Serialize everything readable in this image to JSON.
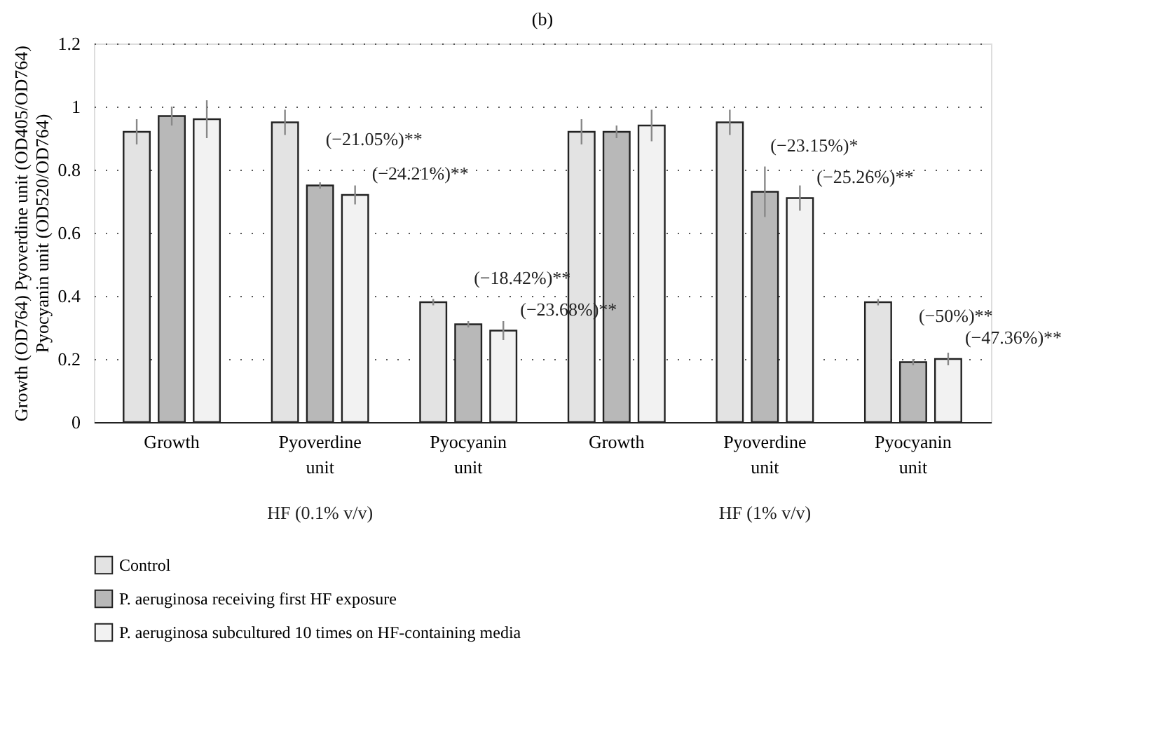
{
  "chart_data": {
    "type": "bar",
    "title": "(b)",
    "ylabel": "Growth (OD764) Pyoverdine unit (OD405/OD764)\nPyocyanin unit (OD520/OD764)",
    "categories": [
      "Growth",
      "Pyoverdine unit",
      "Pyocyanin unit",
      "Growth",
      "Pyoverdine unit",
      "Pyocyanin unit"
    ],
    "series": [
      {
        "name": "Control",
        "color": "#e3e3e3",
        "values": [
          0.92,
          0.95,
          0.38,
          0.92,
          0.95,
          0.38
        ],
        "errors": [
          0.04,
          0.04,
          0.01,
          0.04,
          0.04,
          0.01
        ]
      },
      {
        "name": "P. aeruginosa receiving first HF exposure",
        "color": "#b8b8b8",
        "values": [
          0.97,
          0.75,
          0.31,
          0.92,
          0.73,
          0.19
        ],
        "errors": [
          0.03,
          0.01,
          0.01,
          0.02,
          0.08,
          0.01
        ]
      },
      {
        "name": "P. aeruginosa subcultured 10 times on HF-containing media",
        "color": "#f2f2f2",
        "values": [
          0.96,
          0.72,
          0.29,
          0.94,
          0.71,
          0.2
        ],
        "errors": [
          0.06,
          0.03,
          0.03,
          0.05,
          0.04,
          0.02
        ]
      }
    ],
    "annotations": [
      "(−21.05%)**",
      "(−24.21%)**",
      "(−18.42%)**",
      "(−23.68%)**",
      "(−23.15%)*",
      "(−25.26%)**",
      "(−50%)**",
      "(−47.36%)**",
      "HF (0.1% v/v)",
      "HF (1% v/v)"
    ],
    "ylim": [
      0,
      1.2
    ],
    "yticks": [
      0,
      0.2,
      0.4,
      0.6,
      0.8,
      1,
      1.2
    ],
    "grid": "y",
    "legend": "bottom left"
  }
}
